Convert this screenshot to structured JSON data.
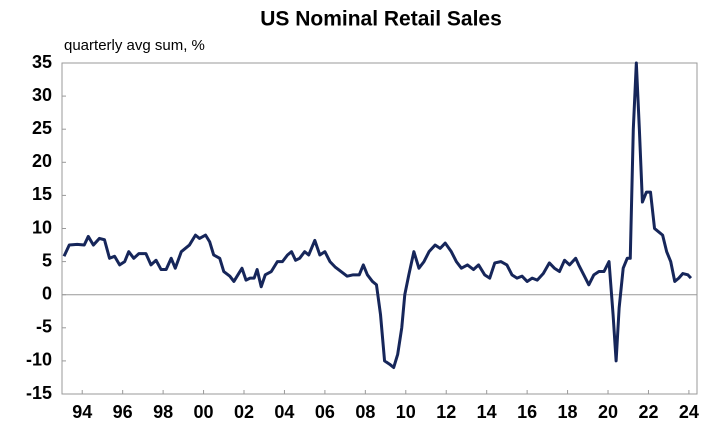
{
  "chart_data": {
    "type": "line",
    "title": "US Nominal Retail Sales",
    "subtitle": "quarterly avg sum, %",
    "x": [
      1993.1,
      1993.36,
      1993.75,
      1994.1,
      1994.3,
      1994.55,
      1994.85,
      1995.1,
      1995.35,
      1995.6,
      1995.85,
      1996.1,
      1996.3,
      1996.55,
      1996.8,
      1997.15,
      1997.4,
      1997.65,
      1997.9,
      1998.15,
      1998.4,
      1998.6,
      1998.9,
      1999.3,
      1999.6,
      1999.8,
      2000.1,
      2000.3,
      2000.5,
      2000.8,
      2001.0,
      2001.3,
      2001.5,
      2001.7,
      2001.9,
      2002.1,
      2002.3,
      2002.5,
      2002.65,
      2002.85,
      2003.05,
      2003.35,
      2003.65,
      2003.9,
      2004.15,
      2004.35,
      2004.55,
      2004.75,
      2005.0,
      2005.2,
      2005.5,
      2005.75,
      2006.0,
      2006.25,
      2006.5,
      2006.8,
      2007.1,
      2007.4,
      2007.7,
      2007.9,
      2008.1,
      2008.35,
      2008.55,
      2008.75,
      2008.95,
      2009.2,
      2009.4,
      2009.6,
      2009.8,
      2009.95,
      2010.15,
      2010.4,
      2010.65,
      2010.9,
      2011.15,
      2011.45,
      2011.7,
      2011.95,
      2012.25,
      2012.5,
      2012.75,
      2013.05,
      2013.35,
      2013.6,
      2013.9,
      2014.15,
      2014.4,
      2014.7,
      2015.0,
      2015.25,
      2015.5,
      2015.75,
      2016.0,
      2016.25,
      2016.5,
      2016.8,
      2017.1,
      2017.35,
      2017.6,
      2017.85,
      2018.1,
      2018.4,
      2018.55,
      2018.8,
      2019.05,
      2019.3,
      2019.55,
      2019.8,
      2020.05,
      2020.25,
      2020.4,
      2020.55,
      2020.75,
      2020.95,
      2021.1,
      2021.25,
      2021.4,
      2021.55,
      2021.7,
      2021.9,
      2022.1,
      2022.3,
      2022.5,
      2022.7,
      2022.9,
      2023.1,
      2023.3,
      2023.5,
      2023.7,
      2023.95,
      2024.1
    ],
    "series": [
      {
        "name": "US Nominal Retail Sales",
        "color": "#16265a",
        "values": [
          5.8,
          7.5,
          7.6,
          7.5,
          8.8,
          7.5,
          8.5,
          8.3,
          5.5,
          5.8,
          4.5,
          5,
          6.5,
          5.5,
          6.2,
          6.2,
          4.5,
          5.2,
          3.8,
          3.8,
          5.5,
          4,
          6.5,
          7.5,
          9,
          8.5,
          9,
          8,
          6,
          5.5,
          3.5,
          2.8,
          2,
          3,
          4,
          2.2,
          2.5,
          2.5,
          3.8,
          1.2,
          3,
          3.5,
          5,
          5,
          6,
          6.5,
          5.2,
          5.5,
          6.5,
          6,
          8.2,
          6,
          6.5,
          5,
          4.2,
          3.5,
          2.8,
          3,
          3,
          4.5,
          3,
          2,
          1.5,
          -3,
          -10,
          -10.5,
          -11,
          -9,
          -5,
          0,
          3,
          6.5,
          4,
          5,
          6.5,
          7.5,
          7,
          7.8,
          6.5,
          5,
          4,
          4.5,
          3.8,
          4.5,
          3,
          2.5,
          4.8,
          5,
          4.5,
          3,
          2.5,
          2.8,
          2,
          2.5,
          2.2,
          3.2,
          4.8,
          4,
          3.5,
          5.2,
          4.5,
          5.5,
          4.5,
          3,
          1.5,
          3,
          3.5,
          3.5,
          5,
          -3,
          -10,
          -2,
          4,
          5.5,
          5.5,
          25,
          35,
          25,
          14,
          15.5,
          15.5,
          10,
          9.5,
          9,
          6.5,
          5,
          2,
          2.5,
          3.2,
          3,
          2.5
        ]
      }
    ],
    "xlim": [
      1993,
      2024.4
    ],
    "xticks": [
      {
        "value": 1994,
        "label": "94"
      },
      {
        "value": 1996,
        "label": "96"
      },
      {
        "value": 1998,
        "label": "98"
      },
      {
        "value": 2000,
        "label": "00"
      },
      {
        "value": 2002,
        "label": "02"
      },
      {
        "value": 2004,
        "label": "04"
      },
      {
        "value": 2006,
        "label": "06"
      },
      {
        "value": 2008,
        "label": "08"
      },
      {
        "value": 2010,
        "label": "10"
      },
      {
        "value": 2012,
        "label": "12"
      },
      {
        "value": 2014,
        "label": "14"
      },
      {
        "value": 2016,
        "label": "16"
      },
      {
        "value": 2018,
        "label": "18"
      },
      {
        "value": 2020,
        "label": "20"
      },
      {
        "value": 2022,
        "label": "22"
      },
      {
        "value": 2024,
        "label": "24"
      }
    ],
    "ylim": [
      -15,
      35
    ],
    "yticks": [
      -15,
      -10,
      -5,
      0,
      5,
      10,
      15,
      20,
      25,
      30,
      35
    ],
    "grid": false
  }
}
